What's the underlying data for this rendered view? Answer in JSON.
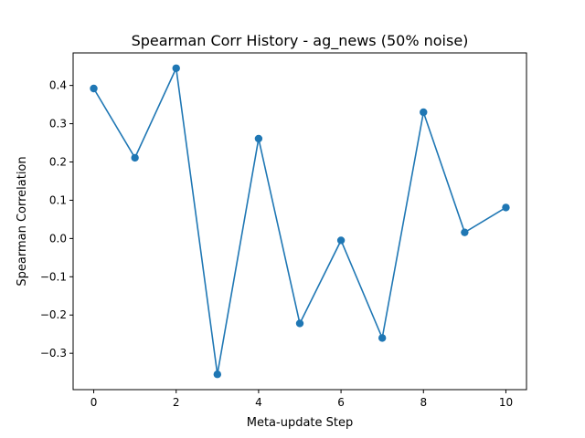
{
  "chart_data": {
    "type": "line",
    "title": "Spearman Corr History - ag_news (50% noise)",
    "xlabel": "Meta-update Step",
    "ylabel": "Spearman Correlation",
    "xlim": [
      -0.5,
      10.5
    ],
    "ylim": [
      -0.395,
      0.485
    ],
    "xticks": [
      0,
      2,
      4,
      6,
      8,
      10
    ],
    "yticks": [
      -0.3,
      -0.2,
      -0.1,
      0.0,
      0.1,
      0.2,
      0.3,
      0.4
    ],
    "ytick_labels": [
      "−0.3",
      "−0.2",
      "−0.1",
      "0.0",
      "0.1",
      "0.2",
      "0.3",
      "0.4"
    ],
    "grid": false,
    "color": "#1f77b4",
    "series": [
      {
        "x": [
          0,
          1,
          2,
          3,
          4,
          5,
          6,
          7,
          8,
          9,
          10
        ],
        "values": [
          0.392,
          0.211,
          0.445,
          -0.355,
          0.261,
          -0.222,
          -0.005,
          -0.26,
          0.33,
          0.016,
          0.081
        ]
      }
    ]
  }
}
